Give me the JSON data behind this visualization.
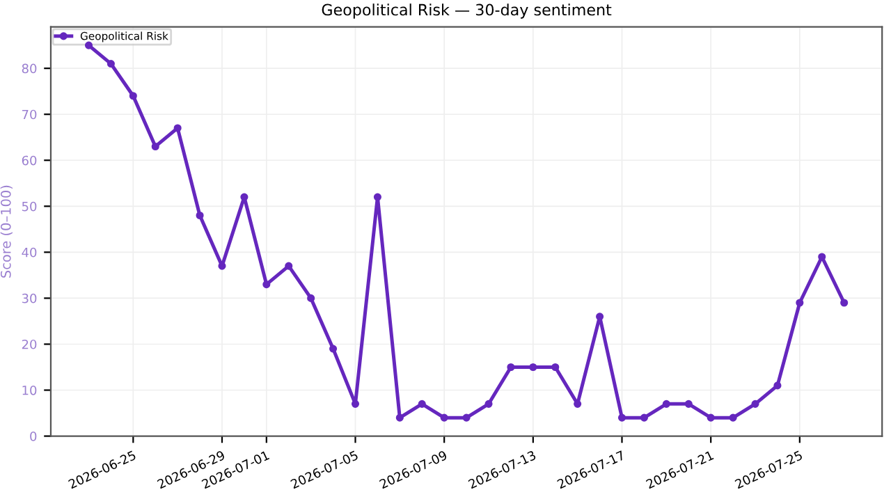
{
  "chart_data": {
    "type": "line",
    "title": "Geopolitical Risk — 30-day sentiment",
    "ylabel": "Score (0–100)",
    "x": [
      "2026-06-23",
      "2026-06-24",
      "2026-06-25",
      "2026-06-26",
      "2026-06-27",
      "2026-06-28",
      "2026-06-29",
      "2026-06-30",
      "2026-07-01",
      "2026-07-02",
      "2026-07-03",
      "2026-07-04",
      "2026-07-05",
      "2026-07-06",
      "2026-07-07",
      "2026-07-08",
      "2026-07-09",
      "2026-07-10",
      "2026-07-11",
      "2026-07-12",
      "2026-07-13",
      "2026-07-14",
      "2026-07-15",
      "2026-07-16",
      "2026-07-17",
      "2026-07-18",
      "2026-07-19",
      "2026-07-20",
      "2026-07-21",
      "2026-07-22",
      "2026-07-23",
      "2026-07-24",
      "2026-07-25",
      "2026-07-26",
      "2026-07-27"
    ],
    "series": [
      {
        "name": "Geopolitical Risk",
        "color": "#6527be",
        "values": [
          85,
          81,
          74,
          63,
          67,
          48,
          37,
          52,
          33,
          37,
          30,
          19,
          7,
          52,
          4,
          7,
          4,
          4,
          7,
          15,
          15,
          15,
          7,
          26,
          4,
          4,
          7,
          7,
          4,
          4,
          7,
          11,
          29,
          39,
          29
        ]
      }
    ],
    "xlim": [
      "2026-06-21T07:00",
      "2026-07-28T17:00"
    ],
    "xticks": [
      "2026-06-25",
      "2026-06-29",
      "2026-07-01",
      "2026-07-05",
      "2026-07-09",
      "2026-07-13",
      "2026-07-17",
      "2026-07-21",
      "2026-07-25"
    ],
    "ylim": [
      0,
      89
    ],
    "yticks": [
      0,
      10,
      20,
      30,
      40,
      50,
      60,
      70,
      80
    ],
    "grid": true,
    "legend": "top left",
    "marker": "circle",
    "line_style": "solid"
  }
}
